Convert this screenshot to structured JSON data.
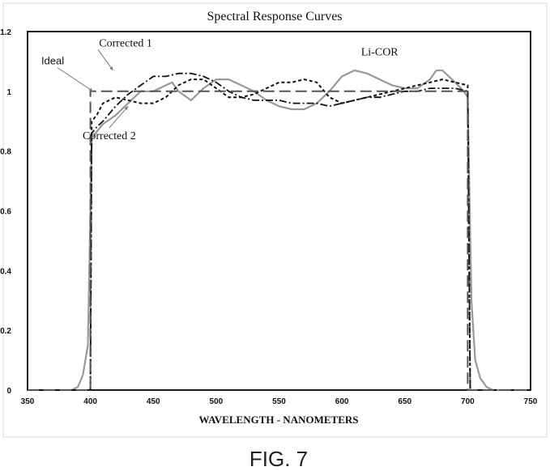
{
  "figure_label": "FIG. 7",
  "chart_data": {
    "type": "line",
    "title": "Spectral Response Curves",
    "xlabel": "WAVELENGTH - NANOMETERS",
    "ylabel": "",
    "xlim": [
      350,
      750
    ],
    "ylim": [
      0,
      1.2
    ],
    "x_ticks": [
      "350",
      "400",
      "450",
      "500",
      "550",
      "600",
      "650",
      "700",
      "750"
    ],
    "y_ticks": [
      "0",
      "0.2",
      "0.4",
      "0.6",
      "0.8",
      "1",
      "1.2"
    ],
    "grid": false,
    "legend": "none (series labeled by annotations with arrows)",
    "series": [
      {
        "name": "Ideal",
        "style": "long-dash",
        "color": "#555555",
        "x": [
          350,
          400,
          400,
          700,
          700,
          750
        ],
        "y": [
          0,
          0,
          1.0,
          1.0,
          0,
          0
        ]
      },
      {
        "name": "Li-COR",
        "style": "solid",
        "color": "#999999",
        "x": [
          350,
          385,
          390,
          394,
          398,
          401,
          404,
          410,
          420,
          430,
          440,
          450,
          460,
          465,
          470,
          480,
          490,
          500,
          510,
          520,
          530,
          540,
          550,
          560,
          570,
          580,
          590,
          600,
          610,
          620,
          630,
          640,
          650,
          660,
          670,
          675,
          680,
          685,
          690,
          697,
          700,
          703,
          706,
          710,
          715,
          720,
          725,
          750
        ],
        "y": [
          0,
          0,
          0.01,
          0.05,
          0.15,
          0.84,
          0.86,
          0.89,
          0.92,
          0.96,
          1.0,
          1.0,
          1.02,
          1.03,
          1.0,
          0.97,
          1.01,
          1.04,
          1.04,
          1.02,
          1.0,
          0.97,
          0.95,
          0.94,
          0.94,
          0.96,
          1.0,
          1.05,
          1.07,
          1.06,
          1.04,
          1.02,
          1.01,
          1.01,
          1.04,
          1.07,
          1.07,
          1.05,
          1.03,
          1.0,
          0.98,
          0.3,
          0.1,
          0.04,
          0.01,
          0.0,
          0.0,
          0
        ]
      },
      {
        "name": "Corrected 1",
        "style": "dash-dot",
        "color": "#111111",
        "x": [
          350,
          400,
          401,
          405,
          410,
          420,
          430,
          440,
          450,
          460,
          470,
          480,
          490,
          500,
          510,
          520,
          530,
          540,
          550,
          560,
          570,
          580,
          590,
          600,
          610,
          620,
          630,
          640,
          650,
          660,
          670,
          680,
          690,
          700,
          702,
          750
        ],
        "y": [
          0,
          0,
          0.86,
          0.88,
          0.9,
          0.95,
          0.99,
          1.02,
          1.05,
          1.05,
          1.06,
          1.06,
          1.05,
          1.03,
          1.0,
          0.98,
          0.97,
          0.97,
          0.97,
          0.96,
          0.96,
          0.96,
          0.95,
          0.96,
          0.97,
          0.98,
          0.98,
          0.99,
          1.0,
          1.0,
          1.01,
          1.01,
          1.01,
          1.0,
          0.0,
          0
        ]
      },
      {
        "name": "Corrected 2",
        "style": "short-dash",
        "color": "#111111",
        "x": [
          350,
          400,
          401,
          405,
          410,
          420,
          430,
          440,
          450,
          460,
          470,
          480,
          490,
          500,
          510,
          520,
          530,
          540,
          550,
          560,
          570,
          580,
          590,
          600,
          610,
          620,
          630,
          640,
          650,
          660,
          670,
          680,
          690,
          700,
          702,
          750
        ],
        "y": [
          0,
          0,
          0.9,
          0.92,
          0.96,
          0.98,
          0.97,
          0.96,
          0.96,
          0.98,
          1.02,
          1.04,
          1.04,
          1.01,
          0.98,
          0.98,
          0.99,
          1.01,
          1.03,
          1.03,
          1.04,
          1.03,
          0.98,
          0.96,
          0.97,
          0.98,
          0.99,
          1.0,
          1.01,
          1.02,
          1.03,
          1.04,
          1.03,
          1.02,
          0.0,
          0
        ]
      }
    ],
    "annotations": [
      {
        "text": "Ideal",
        "font": "sans",
        "x": 370,
        "y": 1.09,
        "arrow_to": [
          402,
          1.0
        ]
      },
      {
        "text": "Corrected 1",
        "font": "serif",
        "x": 428,
        "y": 1.15,
        "arrow_to": [
          418,
          1.07
        ]
      },
      {
        "text": "Corrected 2",
        "font": "serif",
        "x": 415,
        "y": 0.84,
        "arrow_to": [
          430,
          0.95
        ]
      },
      {
        "text": "Li-COR",
        "font": "serif",
        "x": 630,
        "y": 1.12,
        "arrow_to": null
      }
    ]
  }
}
